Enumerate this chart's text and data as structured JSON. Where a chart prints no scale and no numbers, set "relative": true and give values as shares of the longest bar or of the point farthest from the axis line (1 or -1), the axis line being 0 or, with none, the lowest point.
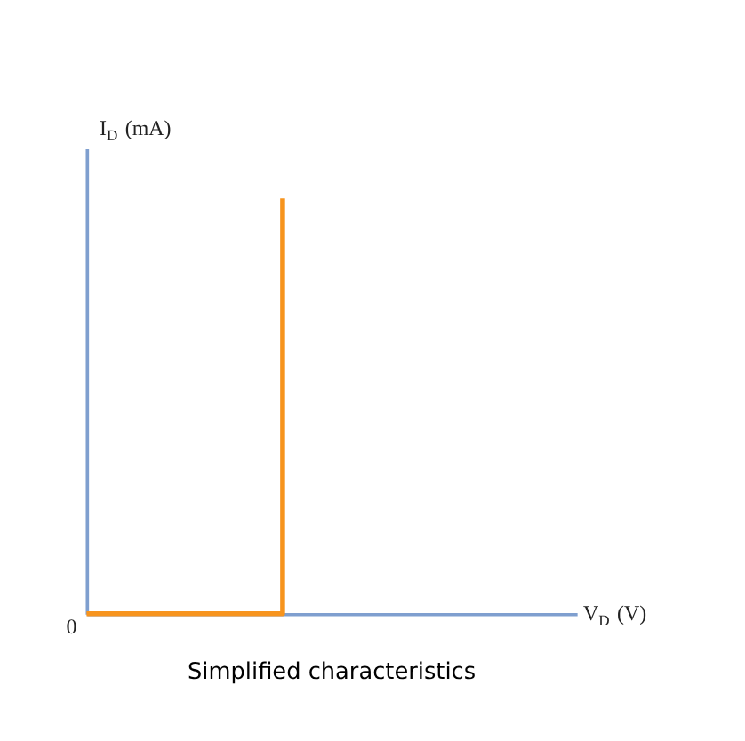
{
  "chart_data": {
    "type": "step",
    "relative": true,
    "title": "Simplified characteristics",
    "xlabel": "V$_{D}$ (V)",
    "ylabel": "I$_{D}$ (mA)",
    "annotations": [
      "0"
    ],
    "categories": [
      null,
      null,
      null,
      null,
      null,
      null
    ],
    "series": [
      {
        "color": "#f7941d",
        "values": [
          0,
          0,
          1,
          null,
          null,
          null
        ]
      }
    ]
  }
}
